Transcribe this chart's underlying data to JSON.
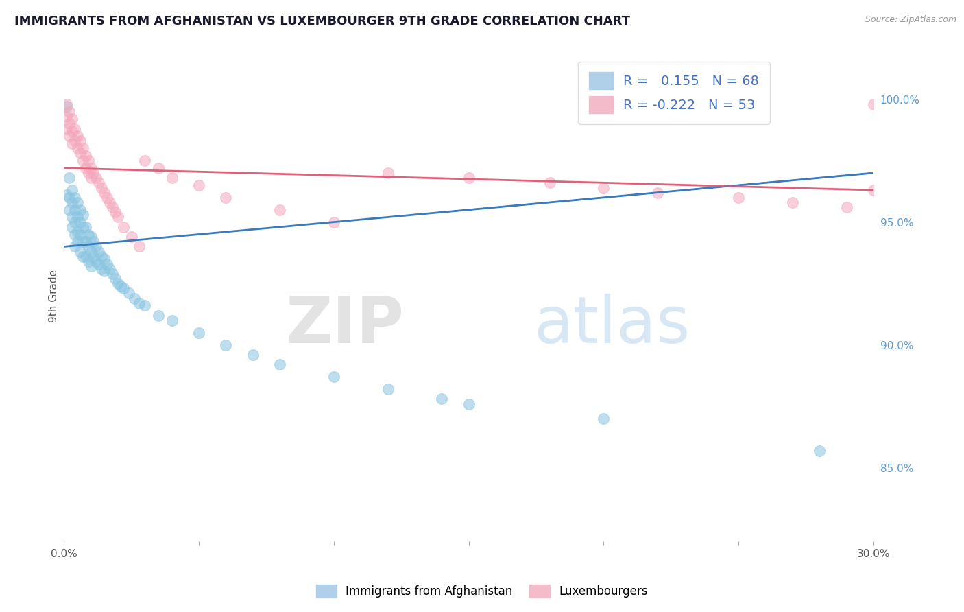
{
  "title": "IMMIGRANTS FROM AFGHANISTAN VS LUXEMBOURGER 9TH GRADE CORRELATION CHART",
  "source": "Source: ZipAtlas.com",
  "ylabel": "9th Grade",
  "xlim": [
    0.0,
    0.3
  ],
  "ylim": [
    0.82,
    1.02
  ],
  "xticks": [
    0.0,
    0.05,
    0.1,
    0.15,
    0.2,
    0.25,
    0.3
  ],
  "xticklabels": [
    "0.0%",
    "",
    "",
    "",
    "",
    "",
    "30.0%"
  ],
  "yticks": [
    0.85,
    0.9,
    0.95,
    1.0
  ],
  "yticklabels": [
    "85.0%",
    "90.0%",
    "95.0%",
    "100.0%"
  ],
  "grid_color": "#cccccc",
  "background_color": "#ffffff",
  "blue_color": "#89c4e1",
  "pink_color": "#f4a6bc",
  "blue_line_color": "#3a7abf",
  "pink_line_color": "#e0607a",
  "R_blue": 0.155,
  "N_blue": 68,
  "R_pink": -0.222,
  "N_pink": 53,
  "legend_label_blue": "Immigrants from Afghanistan",
  "legend_label_pink": "Luxembourgers",
  "watermark_zip": "ZIP",
  "watermark_atlas": "atlas",
  "blue_trend_x0": 0.0,
  "blue_trend_y0": 0.94,
  "blue_trend_x1": 0.3,
  "blue_trend_y1": 0.97,
  "pink_trend_x0": 0.0,
  "pink_trend_y0": 0.972,
  "pink_trend_x1": 0.3,
  "pink_trend_y1": 0.963,
  "blue_scatter_x": [
    0.001,
    0.001,
    0.002,
    0.002,
    0.002,
    0.003,
    0.003,
    0.003,
    0.003,
    0.004,
    0.004,
    0.004,
    0.004,
    0.004,
    0.005,
    0.005,
    0.005,
    0.005,
    0.006,
    0.006,
    0.006,
    0.006,
    0.007,
    0.007,
    0.007,
    0.007,
    0.008,
    0.008,
    0.008,
    0.009,
    0.009,
    0.009,
    0.01,
    0.01,
    0.01,
    0.011,
    0.011,
    0.012,
    0.012,
    0.013,
    0.013,
    0.014,
    0.014,
    0.015,
    0.015,
    0.016,
    0.017,
    0.018,
    0.019,
    0.02,
    0.021,
    0.022,
    0.024,
    0.026,
    0.028,
    0.03,
    0.035,
    0.04,
    0.05,
    0.06,
    0.07,
    0.08,
    0.1,
    0.12,
    0.14,
    0.15,
    0.2,
    0.28
  ],
  "blue_scatter_y": [
    0.997,
    0.961,
    0.96,
    0.968,
    0.955,
    0.963,
    0.958,
    0.952,
    0.948,
    0.96,
    0.955,
    0.95,
    0.945,
    0.94,
    0.958,
    0.952,
    0.946,
    0.942,
    0.955,
    0.95,
    0.945,
    0.938,
    0.953,
    0.948,
    0.942,
    0.936,
    0.948,
    0.942,
    0.936,
    0.945,
    0.94,
    0.934,
    0.944,
    0.938,
    0.932,
    0.942,
    0.936,
    0.94,
    0.934,
    0.938,
    0.933,
    0.936,
    0.931,
    0.935,
    0.93,
    0.933,
    0.931,
    0.929,
    0.927,
    0.925,
    0.924,
    0.923,
    0.921,
    0.919,
    0.917,
    0.916,
    0.912,
    0.91,
    0.905,
    0.9,
    0.896,
    0.892,
    0.887,
    0.882,
    0.878,
    0.876,
    0.87,
    0.857
  ],
  "pink_scatter_x": [
    0.001,
    0.001,
    0.001,
    0.002,
    0.002,
    0.002,
    0.003,
    0.003,
    0.003,
    0.004,
    0.004,
    0.005,
    0.005,
    0.006,
    0.006,
    0.007,
    0.007,
    0.008,
    0.008,
    0.009,
    0.009,
    0.01,
    0.01,
    0.011,
    0.012,
    0.013,
    0.014,
    0.015,
    0.016,
    0.017,
    0.018,
    0.019,
    0.02,
    0.022,
    0.025,
    0.028,
    0.03,
    0.035,
    0.04,
    0.05,
    0.06,
    0.08,
    0.1,
    0.12,
    0.15,
    0.18,
    0.2,
    0.22,
    0.25,
    0.27,
    0.29,
    0.3,
    0.3
  ],
  "pink_scatter_y": [
    0.998,
    0.993,
    0.988,
    0.995,
    0.99,
    0.985,
    0.992,
    0.987,
    0.982,
    0.988,
    0.983,
    0.985,
    0.98,
    0.983,
    0.978,
    0.98,
    0.975,
    0.977,
    0.972,
    0.975,
    0.97,
    0.972,
    0.968,
    0.97,
    0.968,
    0.966,
    0.964,
    0.962,
    0.96,
    0.958,
    0.956,
    0.954,
    0.952,
    0.948,
    0.944,
    0.94,
    0.975,
    0.972,
    0.968,
    0.965,
    0.96,
    0.955,
    0.95,
    0.97,
    0.968,
    0.966,
    0.964,
    0.962,
    0.96,
    0.958,
    0.956,
    0.998,
    0.963
  ]
}
